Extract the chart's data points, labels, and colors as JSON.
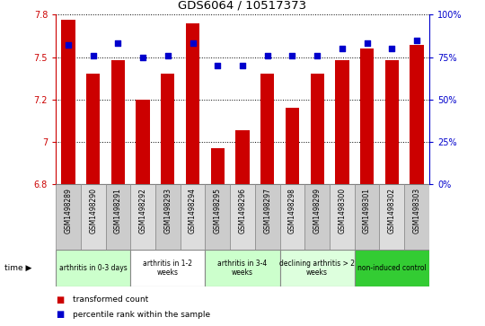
{
  "title": "GDS6064 / 10517373",
  "samples": [
    "GSM1498289",
    "GSM1498290",
    "GSM1498291",
    "GSM1498292",
    "GSM1498293",
    "GSM1498294",
    "GSM1498295",
    "GSM1498296",
    "GSM1498297",
    "GSM1498298",
    "GSM1498299",
    "GSM1498300",
    "GSM1498301",
    "GSM1498302",
    "GSM1498303"
  ],
  "transformed_count": [
    7.72,
    7.4,
    7.48,
    7.25,
    7.4,
    7.7,
    6.96,
    7.07,
    7.4,
    7.2,
    7.4,
    7.48,
    7.55,
    7.48,
    7.57
  ],
  "percentile_rank": [
    82,
    76,
    83,
    75,
    76,
    83,
    70,
    70,
    76,
    76,
    76,
    80,
    83,
    80,
    85
  ],
  "ylim_left": [
    6.75,
    7.75
  ],
  "ylim_right": [
    0,
    100
  ],
  "groups": [
    {
      "label": "arthritis in 0-3 days",
      "start": 0,
      "end": 3,
      "color": "#ccffcc"
    },
    {
      "label": "arthritis in 1-2\nweeks",
      "start": 3,
      "end": 6,
      "color": "#ffffff"
    },
    {
      "label": "arthritis in 3-4\nweeks",
      "start": 6,
      "end": 9,
      "color": "#ccffcc"
    },
    {
      "label": "declining arthritis > 2\nweeks",
      "start": 9,
      "end": 12,
      "color": "#ddffdd"
    },
    {
      "label": "non-induced control",
      "start": 12,
      "end": 15,
      "color": "#33cc33"
    }
  ],
  "bar_color": "#cc0000",
  "dot_color": "#0000cc",
  "left_tick_color": "#cc0000",
  "right_tick_color": "#0000cc",
  "legend1": "transformed count",
  "legend2": "percentile rank within the sample",
  "sample_bg_even": "#cccccc",
  "sample_bg_odd": "#dddddd"
}
